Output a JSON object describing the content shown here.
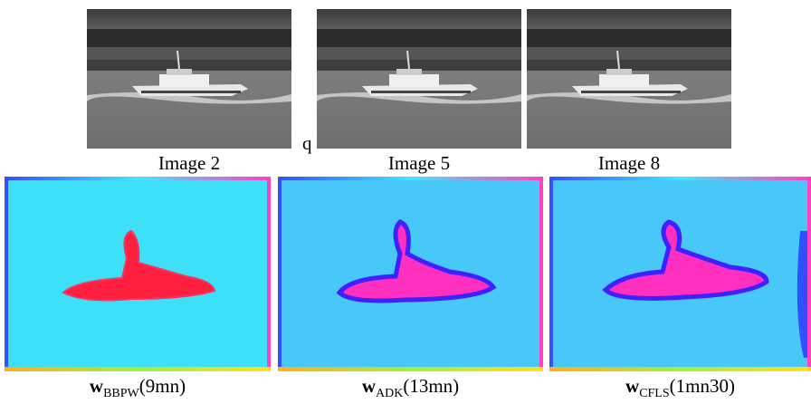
{
  "top_row": {
    "images": [
      {
        "caption": "Image 2"
      },
      {
        "caption": "Image 5"
      },
      {
        "caption": "Image 8"
      }
    ]
  },
  "stray_text": "q",
  "bottom_row": {
    "images": [
      {
        "symbol": "w",
        "subscript": "BBPW",
        "time": "(9mn)"
      },
      {
        "symbol": "w",
        "subscript": "ADK",
        "time": "(13mn)"
      },
      {
        "symbol": "w",
        "subscript": "CFLS",
        "time": "(1mn30)"
      }
    ]
  }
}
